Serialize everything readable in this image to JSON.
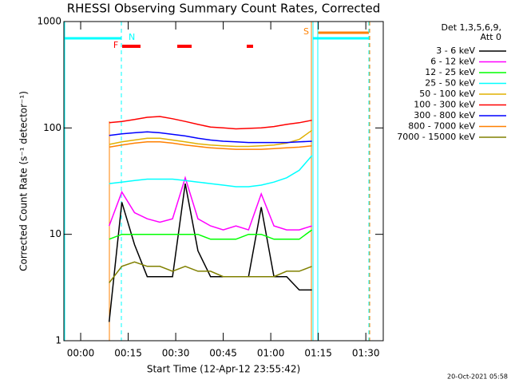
{
  "chart_data": {
    "type": "line",
    "title": "RHESSI Observing Summary Count Rates, Corrected",
    "x_label": "Start Time (12-Apr-12 23:55:42)",
    "y_label": "Corrected Count Rate (s⁻¹ detector⁻¹)",
    "y_scale": "log",
    "legend_title": [
      "Det 1,3,5,6,9,",
      "Att 0"
    ],
    "legend_position": "right",
    "footer": "20-Oct-2021 05:58",
    "annotations": [
      "N",
      "S",
      "F"
    ],
    "xlim": [
      -5.3,
      95.5
    ],
    "xticks": [
      {
        "value": 0,
        "label": "00:00"
      },
      {
        "value": 15,
        "label": "00:15"
      },
      {
        "value": 30,
        "label": "00:30"
      },
      {
        "value": 45,
        "label": "00:45"
      },
      {
        "value": 60,
        "label": "01:00"
      },
      {
        "value": 75,
        "label": "01:15"
      },
      {
        "value": 90,
        "label": "01:30"
      }
    ],
    "ylim": [
      1,
      1000
    ],
    "yticks": [
      1,
      10,
      100,
      1000
    ],
    "x": [
      9,
      13,
      17,
      21,
      25,
      29,
      33,
      37,
      41,
      45,
      49,
      53,
      57,
      61,
      65,
      69,
      73
    ],
    "series": [
      {
        "name": "3 - 6 keV",
        "color": "#000000",
        "values": [
          1.5,
          20,
          8,
          4,
          4,
          4,
          30,
          7,
          4,
          4,
          4,
          4,
          18,
          4,
          4,
          3,
          3
        ]
      },
      {
        "name": "6 - 12 keV",
        "color": "#ff00ff",
        "values": [
          12,
          25,
          16,
          14,
          13,
          14,
          34,
          14,
          12,
          11,
          12,
          11,
          24,
          12,
          11,
          11,
          12
        ]
      },
      {
        "name": "12 - 25 keV",
        "color": "#00ff00",
        "values": [
          9,
          10,
          10,
          10,
          10,
          10,
          10,
          10,
          9,
          9,
          9,
          10,
          10,
          9,
          9,
          9,
          11
        ]
      },
      {
        "name": "25 - 50 keV",
        "color": "#00ffff",
        "values": [
          30,
          31,
          32,
          33,
          33,
          33,
          32,
          31,
          30,
          29,
          28,
          28,
          29,
          31,
          34,
          40,
          55
        ]
      },
      {
        "name": "50 - 100 keV",
        "color": "#e0b000",
        "values": [
          70,
          74,
          77,
          80,
          80,
          77,
          74,
          71,
          69,
          68,
          67,
          67,
          68,
          69,
          72,
          78,
          95
        ]
      },
      {
        "name": "100 - 300 keV",
        "color": "#ff0000",
        "values": [
          112,
          115,
          120,
          126,
          128,
          122,
          115,
          108,
          102,
          100,
          98,
          99,
          100,
          103,
          108,
          112,
          118
        ]
      },
      {
        "name": "300 - 800 keV",
        "color": "#0000ff",
        "values": [
          85,
          88,
          90,
          92,
          90,
          87,
          84,
          80,
          77,
          75,
          74,
          73,
          73,
          73,
          73,
          74,
          75
        ]
      },
      {
        "name": "800 - 7000 keV",
        "color": "#ff8000",
        "values": [
          66,
          69,
          72,
          74,
          74,
          72,
          69,
          67,
          65,
          64,
          63,
          63,
          63,
          64,
          65,
          66,
          68
        ]
      },
      {
        "name": "7000 - 15000 keV",
        "color": "#808000",
        "values": [
          3.5,
          5,
          5.5,
          5,
          5,
          4.5,
          5,
          4.5,
          4.5,
          4,
          4,
          4,
          4,
          4,
          4.5,
          4.5,
          5
        ]
      }
    ]
  }
}
